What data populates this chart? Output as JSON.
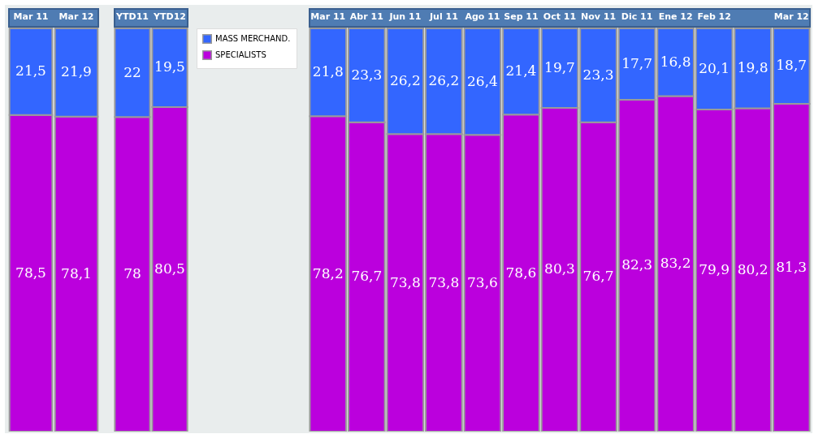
{
  "chart_data": [
    {
      "type": "bar",
      "stacked": true,
      "categories": [
        "Mar 11",
        "Mar 12"
      ],
      "series": [
        {
          "color": "#bb00dd",
          "values": [
            78.5,
            78.1
          ],
          "value_labels": [
            "78,5",
            "78,1"
          ]
        },
        {
          "color": "#3366ff",
          "values": [
            21.5,
            21.9
          ],
          "value_labels": [
            "21,5",
            "21,9"
          ]
        }
      ]
    },
    {
      "type": "bar",
      "stacked": true,
      "legend": "right",
      "categories": [
        "YTD11",
        "YTD12"
      ],
      "series": [
        {
          "name": "SPECIALISTS",
          "color": "#bb00dd",
          "values": [
            78,
            80.5
          ],
          "value_labels": [
            "78",
            "80,5"
          ]
        },
        {
          "name": "MASS MERCHAND.",
          "color": "#3366ff",
          "values": [
            22,
            19.5
          ],
          "value_labels": [
            "22",
            "19,5"
          ]
        }
      ]
    },
    {
      "type": "bar",
      "stacked": true,
      "categories": [
        "Mar 11",
        "Abr 11",
        "Jun 11",
        "Jul 11",
        "Ago 11",
        "Sep 11",
        "Oct 11",
        "Nov 11",
        "Dic 11",
        "Ene 12",
        "Feb 12",
        null,
        "Mar 12"
      ],
      "series": [
        {
          "color": "#bb00dd",
          "values": [
            78.2,
            76.7,
            73.8,
            73.8,
            73.6,
            78.6,
            80.3,
            76.7,
            82.3,
            83.2,
            79.9,
            80.2,
            81.3
          ],
          "value_labels": [
            "78,2",
            "76,7",
            "73,8",
            "73,8",
            "73,6",
            "78,6",
            "80,3",
            "76,7",
            "82,3",
            "83,2",
            "79,9",
            "80,2",
            "81,3"
          ]
        },
        {
          "color": "#3366ff",
          "values": [
            21.8,
            23.3,
            26.2,
            26.2,
            26.4,
            21.4,
            19.7,
            23.3,
            17.7,
            16.8,
            20.1,
            19.8,
            18.7
          ],
          "value_labels": [
            "21,8",
            "23,3",
            "26,2",
            "26,2",
            "26,4",
            "21,4",
            "19,7",
            "23,3",
            "17,7",
            "16,8",
            "20,1",
            "19,8",
            "18,7"
          ]
        }
      ]
    }
  ]
}
